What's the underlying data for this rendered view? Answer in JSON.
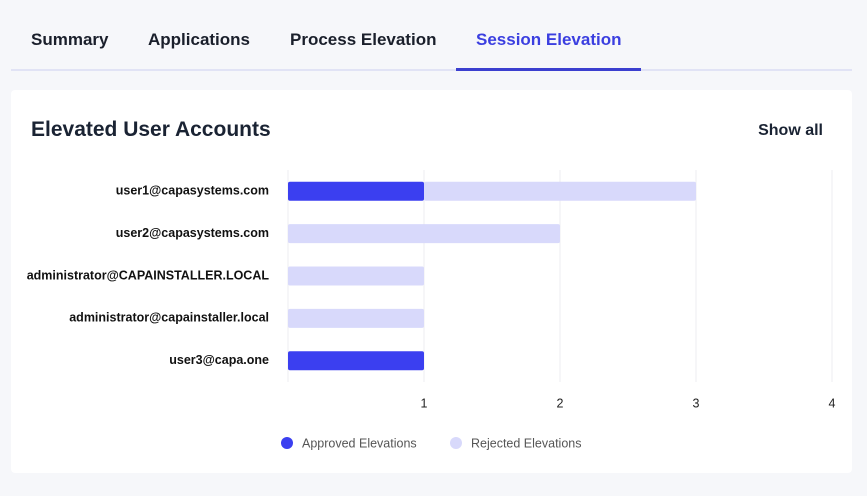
{
  "tabs": [
    "Summary",
    "Applications",
    "Process Elevation",
    "Session Elevation"
  ],
  "card": {
    "title": "Elevated User Accounts",
    "action": "Show all"
  },
  "chart_data": {
    "type": "bar",
    "orientation": "horizontal",
    "stacked": true,
    "categories": [
      "user1@capasystems.com",
      "user2@capasystems.com",
      "administrator@CAPAINSTALLER.LOCAL",
      "administrator@capainstaller.local",
      "user3@capa.one"
    ],
    "series": [
      {
        "name": "Approved Elevations",
        "color": "#3b3ff0",
        "values": [
          1,
          0,
          0,
          0,
          1
        ]
      },
      {
        "name": "Rejected Elevations",
        "color": "#d8d9fb",
        "values": [
          2,
          2,
          1,
          1,
          0
        ]
      }
    ],
    "xlim": [
      0,
      4
    ],
    "xticks": [
      1,
      2,
      3,
      4
    ],
    "grid": true,
    "legend": "bottom"
  }
}
